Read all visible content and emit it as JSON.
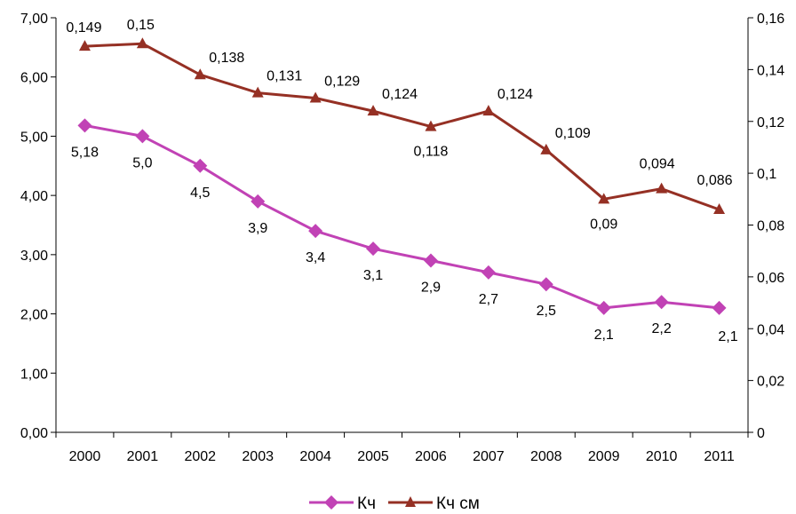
{
  "chart_data": {
    "type": "line",
    "categories": [
      "2000",
      "2001",
      "2002",
      "2003",
      "2004",
      "2005",
      "2006",
      "2007",
      "2008",
      "2009",
      "2010",
      "2011"
    ],
    "left_axis": {
      "ylim": [
        0,
        7
      ],
      "ticks": [
        0,
        1,
        2,
        3,
        4,
        5,
        6,
        7
      ],
      "tick_labels": [
        "0,00",
        "1,00",
        "2,00",
        "3,00",
        "4,00",
        "5,00",
        "6,00",
        "7,00"
      ]
    },
    "right_axis": {
      "ylim": [
        0,
        0.16
      ],
      "ticks": [
        0,
        0.02,
        0.04,
        0.06,
        0.08,
        0.1,
        0.12,
        0.14,
        0.16
      ],
      "tick_labels": [
        "0",
        "0,02",
        "0,04",
        "0,06",
        "0,08",
        "0,1",
        "0,12",
        "0,14",
        "0,16"
      ]
    },
    "series": [
      {
        "name": "Кч",
        "axis": "left",
        "color": "#c142b5",
        "marker": "diamond",
        "values": [
          5.18,
          5.0,
          4.5,
          3.9,
          3.4,
          3.1,
          2.9,
          2.7,
          2.5,
          2.1,
          2.2,
          2.1
        ],
        "labels": [
          "5,18",
          "5,0",
          "4,5",
          "3,9",
          "3,4",
          "3,1",
          "2,9",
          "2,7",
          "2,5",
          "2,1",
          "2,2",
          "2,1"
        ]
      },
      {
        "name": "Кч см",
        "axis": "right",
        "color": "#953024",
        "marker": "triangle",
        "values": [
          0.149,
          0.15,
          0.138,
          0.131,
          0.129,
          0.124,
          0.118,
          0.124,
          0.109,
          0.09,
          0.094,
          0.086
        ],
        "labels": [
          "0,149",
          "0,15",
          "0,138",
          "0,131",
          "0,129",
          "0,124",
          "0,118",
          "0,124",
          "0,109",
          "0,09",
          "0,094",
          "0,086"
        ]
      }
    ],
    "legend_position": "bottom",
    "grid": false
  }
}
